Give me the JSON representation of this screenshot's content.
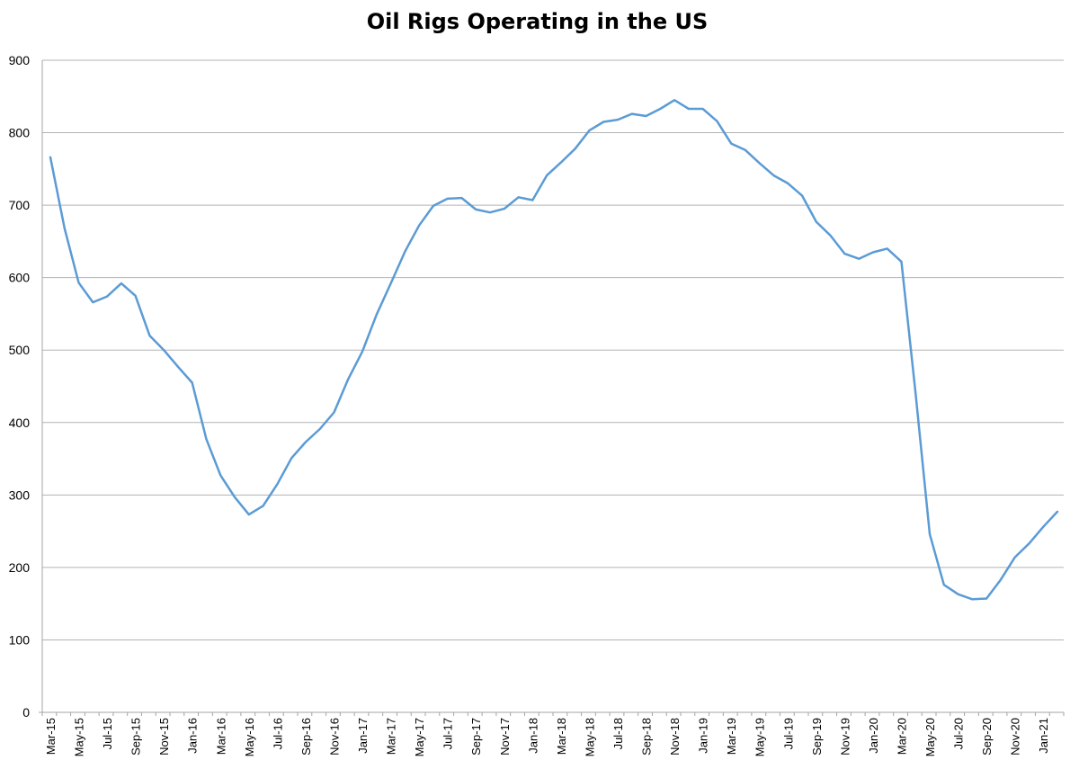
{
  "chart_data": {
    "type": "line",
    "title": "Oil Rigs Operating in the US",
    "xlabel": "",
    "ylabel": "",
    "ylim": [
      0,
      900
    ],
    "y_ticks": [
      0,
      100,
      200,
      300,
      400,
      500,
      600,
      700,
      800,
      900
    ],
    "grid": "horizontal",
    "legend": "none",
    "line_color": "#5b9bd5",
    "grid_color": "#b3b3b3",
    "axis_color": "#a6a6a6",
    "x": [
      "Mar-15",
      "Apr-15",
      "May-15",
      "Jun-15",
      "Jul-15",
      "Aug-15",
      "Sep-15",
      "Oct-15",
      "Nov-15",
      "Dec-15",
      "Jan-16",
      "Feb-16",
      "Mar-16",
      "Apr-16",
      "May-16",
      "Jun-16",
      "Jul-16",
      "Aug-16",
      "Sep-16",
      "Oct-16",
      "Nov-16",
      "Dec-16",
      "Jan-17",
      "Feb-17",
      "Mar-17",
      "Apr-17",
      "May-17",
      "Jun-17",
      "Jul-17",
      "Aug-17",
      "Sep-17",
      "Oct-17",
      "Nov-17",
      "Dec-17",
      "Jan-18",
      "Feb-18",
      "Mar-18",
      "Apr-18",
      "May-18",
      "Jun-18",
      "Jul-18",
      "Aug-18",
      "Sep-18",
      "Oct-18",
      "Nov-18",
      "Dec-18",
      "Jan-19",
      "Feb-19",
      "Mar-19",
      "Apr-19",
      "May-19",
      "Jun-19",
      "Jul-19",
      "Aug-19",
      "Sep-19",
      "Oct-19",
      "Nov-19",
      "Dec-19",
      "Jan-20",
      "Feb-20",
      "Mar-20",
      "Apr-20",
      "May-20",
      "Jun-20",
      "Jul-20",
      "Aug-20",
      "Sep-20",
      "Oct-20",
      "Nov-20",
      "Dec-20",
      "Jan-21",
      "Feb-21"
    ],
    "x_tick_labels": [
      "Mar-15",
      "May-15",
      "Jul-15",
      "Sep-15",
      "Nov-15",
      "Jan-16",
      "Mar-16",
      "May-16",
      "Jul-16",
      "Sep-16",
      "Nov-16",
      "Jan-17",
      "Mar-17",
      "May-17",
      "Jul-17",
      "Sep-17",
      "Nov-17",
      "Jan-18",
      "Mar-18",
      "May-18",
      "Jul-18",
      "Sep-18",
      "Nov-18",
      "Jan-19",
      "Mar-19",
      "May-19",
      "Jul-19",
      "Sep-19",
      "Nov-19",
      "Jan-20",
      "Mar-20",
      "May-20",
      "Jul-20",
      "Sep-20",
      "Nov-20",
      "Jan-21"
    ],
    "series": [
      {
        "values": [
          766,
          668,
          593,
          566,
          574,
          592,
          575,
          520,
          500,
          477,
          455,
          377,
          327,
          297,
          273,
          285,
          315,
          351,
          373,
          391,
          414,
          460,
          498,
          549,
          592,
          636,
          672,
          699,
          709,
          710,
          694,
          690,
          695,
          711,
          707,
          741,
          759,
          778,
          803,
          815,
          818,
          826,
          823,
          833,
          845,
          833,
          833,
          816,
          785,
          776,
          758,
          741,
          730,
          713,
          677,
          658,
          633,
          626,
          635,
          640,
          622,
          440,
          246,
          176,
          163,
          156,
          157,
          183,
          214,
          233,
          256,
          277
        ]
      }
    ]
  }
}
